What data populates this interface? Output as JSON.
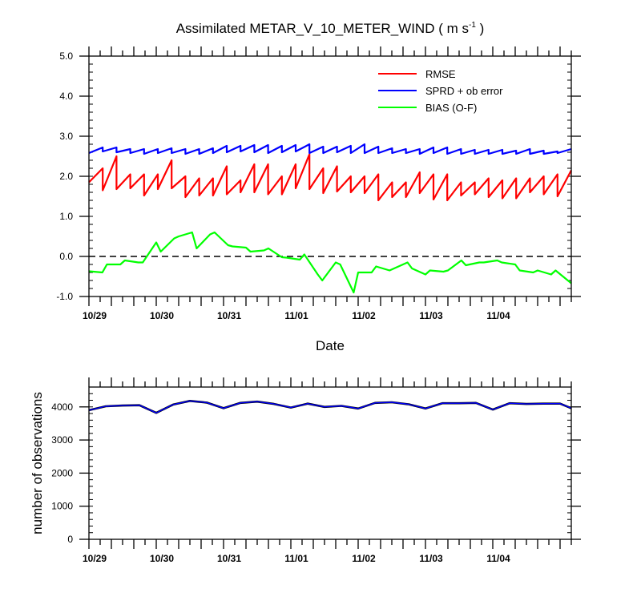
{
  "chart_data": [
    {
      "type": "line",
      "title": "Assimilated METAR_V_10_METER_WIND ( m s",
      "title_superscript": "-1",
      "title_suffix": " )",
      "xlabel": "Date",
      "ylabel": "",
      "ylim": [
        -1.0,
        5.0
      ],
      "yticks": [
        -1.0,
        0.0,
        1.0,
        2.0,
        3.0,
        4.0,
        5.0
      ],
      "ytick_labels": [
        "-1.0",
        "0.0",
        "1.0",
        "2.0",
        "3.0",
        "4.0",
        "5.0"
      ],
      "xlim": [
        0,
        43
      ],
      "x_labels": [
        {
          "x": 0.5,
          "label": "10/29"
        },
        {
          "x": 6.5,
          "label": "10/30"
        },
        {
          "x": 12.5,
          "label": "10/31"
        },
        {
          "x": 18.5,
          "label": "11/01"
        },
        {
          "x": 24.5,
          "label": "11/02"
        },
        {
          "x": 30.5,
          "label": "11/03"
        },
        {
          "x": 36.5,
          "label": "11/04"
        }
      ],
      "zero_line": "dashed",
      "legend_placement": "top-right",
      "series": [
        {
          "name": "RMSE",
          "color": "#ff0000",
          "segments": [
            [
              1.85,
              2.2
            ],
            [
              1.65,
              2.5
            ],
            [
              1.68,
              2.05
            ],
            [
              1.7,
              2.05
            ],
            [
              1.52,
              2.05
            ],
            [
              1.68,
              2.4
            ],
            [
              1.7,
              2.0
            ],
            [
              1.48,
              1.95
            ],
            [
              1.52,
              1.95
            ],
            [
              1.52,
              2.25
            ],
            [
              1.55,
              1.9
            ],
            [
              1.6,
              2.3
            ],
            [
              1.6,
              2.3
            ],
            [
              1.55,
              2.0
            ],
            [
              1.55,
              2.3
            ],
            [
              1.7,
              2.55
            ],
            [
              1.68,
              2.2
            ],
            [
              1.58,
              2.25
            ],
            [
              1.62,
              2.0
            ],
            [
              1.6,
              2.0
            ],
            [
              1.58,
              2.05
            ],
            [
              1.4,
              1.85
            ],
            [
              1.48,
              1.85
            ],
            [
              1.48,
              2.1
            ],
            [
              1.58,
              2.05
            ],
            [
              1.42,
              2.05
            ],
            [
              1.4,
              1.85
            ],
            [
              1.52,
              1.85
            ],
            [
              1.55,
              1.95
            ],
            [
              1.48,
              1.9
            ],
            [
              1.45,
              1.95
            ],
            [
              1.45,
              1.95
            ],
            [
              1.6,
              2.0
            ],
            [
              1.55,
              2.05
            ],
            [
              1.5,
              2.15
            ]
          ]
        },
        {
          "name": "SPRD + ob error",
          "color": "#0000ff",
          "segments": [
            [
              2.58,
              2.72
            ],
            [
              2.62,
              2.72
            ],
            [
              2.6,
              2.68
            ],
            [
              2.58,
              2.68
            ],
            [
              2.56,
              2.68
            ],
            [
              2.58,
              2.7
            ],
            [
              2.58,
              2.68
            ],
            [
              2.56,
              2.68
            ],
            [
              2.56,
              2.7
            ],
            [
              2.58,
              2.76
            ],
            [
              2.6,
              2.76
            ],
            [
              2.62,
              2.78
            ],
            [
              2.6,
              2.78
            ],
            [
              2.58,
              2.76
            ],
            [
              2.6,
              2.78
            ],
            [
              2.62,
              2.8
            ],
            [
              2.58,
              2.74
            ],
            [
              2.58,
              2.74
            ],
            [
              2.6,
              2.76
            ],
            [
              2.58,
              2.8
            ],
            [
              2.58,
              2.74
            ],
            [
              2.58,
              2.7
            ],
            [
              2.58,
              2.68
            ],
            [
              2.58,
              2.68
            ],
            [
              2.56,
              2.72
            ],
            [
              2.58,
              2.72
            ],
            [
              2.56,
              2.68
            ],
            [
              2.56,
              2.66
            ],
            [
              2.56,
              2.66
            ],
            [
              2.56,
              2.66
            ],
            [
              2.56,
              2.64
            ],
            [
              2.56,
              2.68
            ],
            [
              2.56,
              2.64
            ],
            [
              2.56,
              2.62
            ],
            [
              2.58,
              2.68
            ]
          ]
        },
        {
          "name": "BIAS (O-F)",
          "color": "#00ff00",
          "x": [
            0,
            1.2,
            1.6,
            2.8,
            3.2,
            4.4,
            4.8,
            6.0,
            6.4,
            7.6,
            8.0,
            9.2,
            9.6,
            10.8,
            11.2,
            12.4,
            12.8,
            14.0,
            14.4,
            15.6,
            16.0,
            17.2,
            17.6,
            18.8,
            19.2,
            20.4,
            20.8,
            22.0,
            22.4,
            23.6,
            24.0,
            25.2,
            25.6,
            26.8,
            27.2,
            28.4,
            28.8,
            30.0,
            30.4,
            31.6,
            32.0,
            33.2,
            33.6,
            34.8,
            35.2,
            36.4,
            36.8,
            38.0,
            38.4,
            39.6,
            40.0,
            41.2,
            41.6,
            43.0
          ],
          "values": [
            -0.37,
            -0.4,
            -0.2,
            -0.2,
            -0.1,
            -0.15,
            -0.15,
            0.35,
            0.12,
            0.45,
            0.5,
            0.6,
            0.2,
            0.55,
            0.6,
            0.28,
            0.25,
            0.22,
            0.12,
            0.15,
            0.2,
            -0.02,
            -0.03,
            -0.08,
            0.05,
            -0.45,
            -0.6,
            -0.15,
            -0.2,
            -0.9,
            -0.4,
            -0.4,
            -0.25,
            -0.35,
            -0.3,
            -0.15,
            -0.3,
            -0.45,
            -0.35,
            -0.38,
            -0.35,
            -0.1,
            -0.22,
            -0.15,
            -0.15,
            -0.1,
            -0.15,
            -0.2,
            -0.35,
            -0.4,
            -0.35,
            -0.45,
            -0.35,
            -0.67
          ]
        }
      ]
    },
    {
      "type": "line",
      "title": "",
      "xlabel": "",
      "ylabel": "number of observations",
      "ylim": [
        0,
        4600
      ],
      "yticks": [
        0,
        1000,
        2000,
        3000,
        4000
      ],
      "ytick_labels": [
        "0",
        "1000",
        "2000",
        "3000",
        "4000"
      ],
      "xlim": [
        0,
        43
      ],
      "x_labels": [
        {
          "x": 0.5,
          "label": "10/29"
        },
        {
          "x": 6.5,
          "label": "10/30"
        },
        {
          "x": 12.5,
          "label": "10/31"
        },
        {
          "x": 18.5,
          "label": "11/01"
        },
        {
          "x": 24.5,
          "label": "11/02"
        },
        {
          "x": 30.5,
          "label": "11/03"
        },
        {
          "x": 36.5,
          "label": "11/04"
        }
      ],
      "series": [
        {
          "color": "#0000ff",
          "outline_color": "#000000",
          "x": [
            0,
            1.5,
            3,
            4.5,
            6,
            7.5,
            9,
            10.5,
            12,
            13.5,
            15,
            16.5,
            18,
            19.5,
            21,
            22.5,
            24,
            25.5,
            27,
            28.5,
            30,
            31.5,
            33,
            34.5,
            36,
            37.5,
            39,
            40.5,
            42,
            43
          ],
          "values": [
            3900,
            4020,
            4040,
            4050,
            3820,
            4070,
            4180,
            4130,
            3960,
            4120,
            4160,
            4090,
            3980,
            4100,
            4000,
            4030,
            3950,
            4120,
            4140,
            4080,
            3950,
            4110,
            4110,
            4120,
            3920,
            4110,
            4090,
            4100,
            4100,
            3960
          ]
        }
      ]
    }
  ]
}
